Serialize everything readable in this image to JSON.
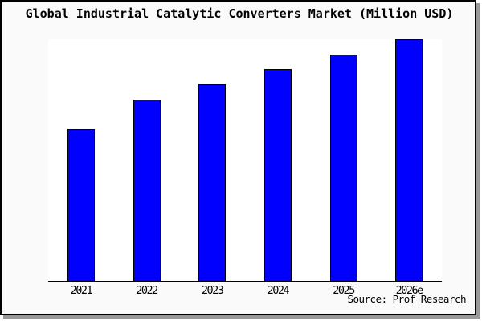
{
  "title": "Global Industrial Catalytic Converters Market (Million USD)",
  "source": "Source: Prof Research",
  "colors": {
    "bar_fill": "#0000ff",
    "bar_outline": "#000000",
    "axis": "#000000",
    "frame_border": "#000000",
    "frame_shadow": "#999999",
    "margin_background": "#fafafa",
    "plot_background": "#ffffff",
    "text": "#000000"
  },
  "chart_data": {
    "type": "bar",
    "title": "Global Industrial Catalytic Converters Market (Million USD)",
    "categories": [
      "2021",
      "2022",
      "2023",
      "2024",
      "2025",
      "2026e"
    ],
    "values": [
      62.8,
      75.1,
      81.4,
      87.7,
      93.7,
      100
    ],
    "values_unit": "relative index, 2026e = 100 (y-axis has no tick labels in chart)",
    "series_color": "#0000ff",
    "xlabel": "",
    "ylabel": "",
    "y_axis_ticks": [],
    "grid": false,
    "legend": false,
    "annotation": "Source: Prof Research"
  }
}
